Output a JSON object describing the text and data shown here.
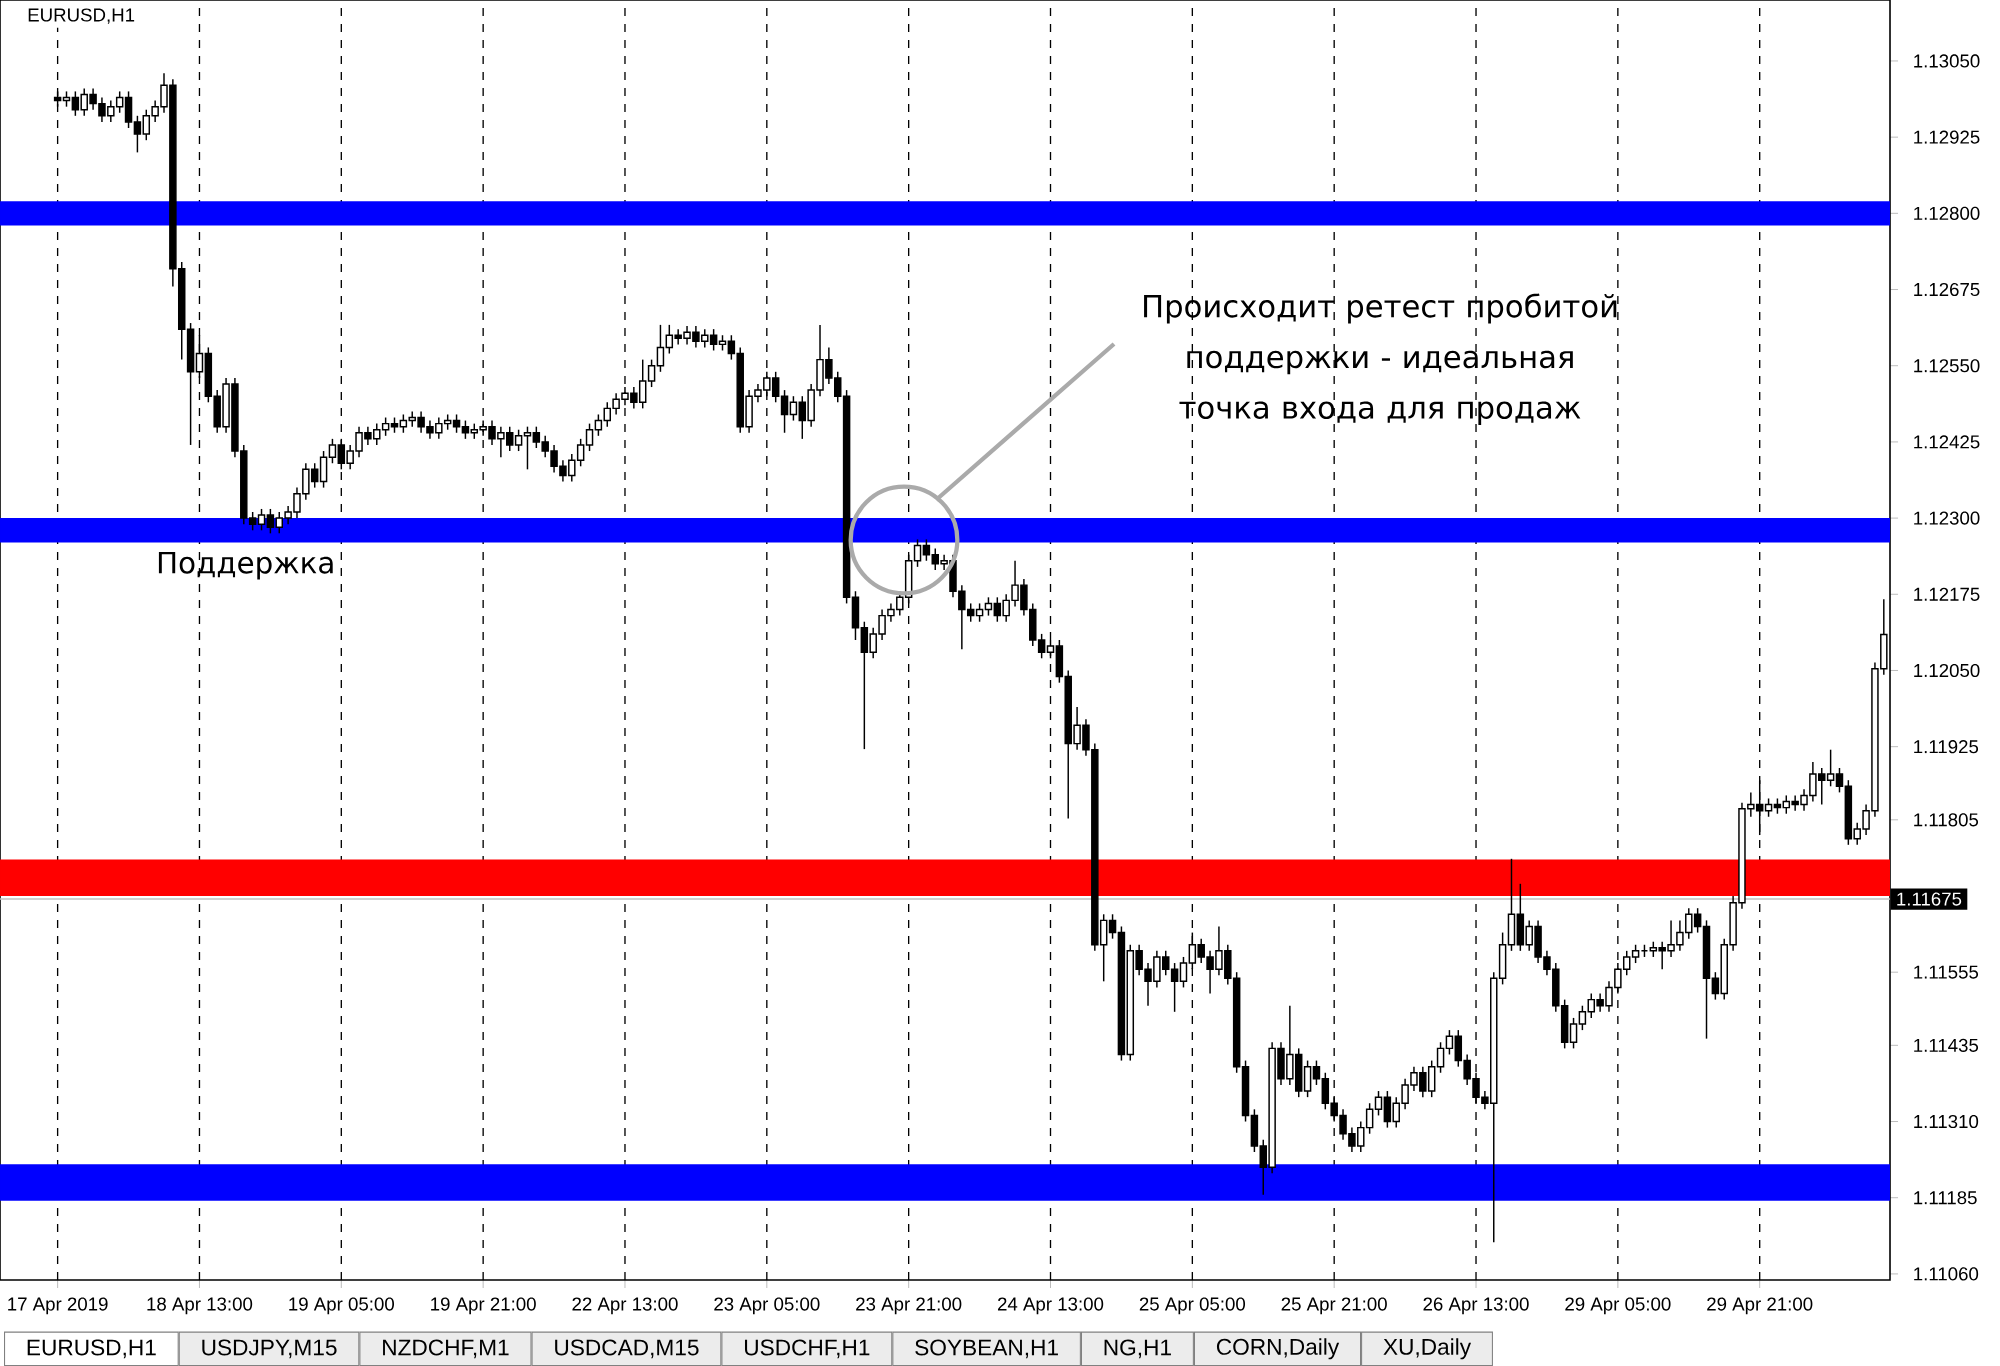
{
  "chart_data": {
    "type": "candlestick",
    "title": "EURUSD,H1",
    "categories": [
      "17 Apr 2019",
      null,
      null,
      null,
      null,
      null,
      null,
      null,
      null,
      null,
      null,
      null,
      null,
      null,
      null,
      null,
      "18 Apr 13:00",
      null,
      null,
      null,
      null,
      null,
      null,
      null,
      null,
      null,
      null,
      null,
      null,
      null,
      null,
      null,
      "19 Apr 05:00",
      null,
      null,
      null,
      null,
      null,
      null,
      null,
      null,
      null,
      null,
      null,
      null,
      null,
      null,
      null,
      "19 Apr 21:00",
      null,
      null,
      null,
      null,
      null,
      null,
      null,
      null,
      null,
      null,
      null,
      null,
      null,
      null,
      null,
      "22 Apr 13:00",
      null,
      null,
      null,
      null,
      null,
      null,
      null,
      null,
      null,
      null,
      null,
      null,
      null,
      null,
      null,
      "23 Apr 05:00",
      null,
      null,
      null,
      null,
      null,
      null,
      null,
      null,
      null,
      null,
      null,
      null,
      null,
      null,
      null,
      "23 Apr 21:00",
      null,
      null,
      null,
      null,
      null,
      null,
      null,
      null,
      null,
      null,
      null,
      null,
      null,
      null,
      null,
      "24 Apr 13:00",
      null,
      null,
      null,
      null,
      null,
      null,
      null,
      null,
      null,
      null,
      null,
      null,
      null,
      null,
      null,
      "25 Apr 05:00",
      null,
      null,
      null,
      null,
      null,
      null,
      null,
      null,
      null,
      null,
      null,
      null,
      null,
      null,
      null,
      "25 Apr 21:00",
      null,
      null,
      null,
      null,
      null,
      null,
      null,
      null,
      null,
      null,
      null,
      null,
      null,
      null,
      null,
      "26 Apr 13:00",
      null,
      null,
      null,
      null,
      null,
      null,
      null,
      null,
      null,
      null,
      null,
      null,
      null,
      null,
      null,
      "29 Apr 05:00",
      null,
      null,
      null,
      null,
      null,
      null,
      null,
      null,
      null,
      null,
      null,
      null,
      null,
      null,
      null,
      "29 Apr 21:00",
      null,
      null,
      null,
      null,
      null,
      null,
      null,
      null,
      null,
      null,
      null,
      null,
      null,
      null
    ],
    "ohlc": [
      [
        1.1299,
        1.13,
        1.12975,
        1.12985
      ],
      [
        1.12985,
        1.13,
        1.12975,
        1.1299
      ],
      [
        1.1299,
        1.13,
        1.1296,
        1.1297
      ],
      [
        1.1297,
        1.13005,
        1.1296,
        1.12995
      ],
      [
        1.12995,
        1.13005,
        1.1297,
        1.1298
      ],
      [
        1.1298,
        1.1299,
        1.1295,
        1.1296
      ],
      [
        1.1296,
        1.12985,
        1.1295,
        1.12975
      ],
      [
        1.12975,
        1.13,
        1.12965,
        1.1299
      ],
      [
        1.1299,
        1.13,
        1.1294,
        1.1295
      ],
      [
        1.1295,
        1.1296,
        1.129,
        1.1293
      ],
      [
        1.1293,
        1.1297,
        1.1292,
        1.1296
      ],
      [
        1.1296,
        1.12985,
        1.1295,
        1.12975
      ],
      [
        1.12975,
        1.1303,
        1.12965,
        1.1301
      ],
      [
        1.1301,
        1.1302,
        1.1268,
        1.12709
      ],
      [
        1.12709,
        1.1272,
        1.1256,
        1.1261
      ],
      [
        1.1261,
        1.1262,
        1.1242,
        1.1254
      ],
      [
        1.1254,
        1.126,
        1.1253,
        1.1257
      ],
      [
        1.1257,
        1.1258,
        1.1249,
        1.125
      ],
      [
        1.125,
        1.1251,
        1.1244,
        1.1245
      ],
      [
        1.1245,
        1.1253,
        1.1244,
        1.1252
      ],
      [
        1.1252,
        1.1253,
        1.124,
        1.1241
      ],
      [
        1.1241,
        1.1242,
        1.1229,
        1.123
      ],
      [
        1.123,
        1.1231,
        1.1228,
        1.1229
      ],
      [
        1.1229,
        1.12315,
        1.1228,
        1.12305
      ],
      [
        1.12305,
        1.12315,
        1.12275,
        1.12285
      ],
      [
        1.12285,
        1.1231,
        1.12275,
        1.123
      ],
      [
        1.123,
        1.1232,
        1.1229,
        1.1231
      ],
      [
        1.1231,
        1.1235,
        1.123,
        1.1234
      ],
      [
        1.1234,
        1.1239,
        1.1233,
        1.1238
      ],
      [
        1.1238,
        1.1239,
        1.1235,
        1.1236
      ],
      [
        1.1236,
        1.1241,
        1.1235,
        1.124
      ],
      [
        1.124,
        1.1243,
        1.1239,
        1.1242
      ],
      [
        1.1242,
        1.1243,
        1.1238,
        1.1239
      ],
      [
        1.1239,
        1.1242,
        1.1238,
        1.1241
      ],
      [
        1.1241,
        1.1245,
        1.124,
        1.1244
      ],
      [
        1.1244,
        1.1245,
        1.1242,
        1.1243
      ],
      [
        1.1243,
        1.12455,
        1.1242,
        1.12445
      ],
      [
        1.12445,
        1.12465,
        1.12435,
        1.12455
      ],
      [
        1.12455,
        1.12465,
        1.1244,
        1.1245
      ],
      [
        1.1245,
        1.1247,
        1.1244,
        1.1246
      ],
      [
        1.1246,
        1.12475,
        1.1245,
        1.12465
      ],
      [
        1.12465,
        1.12475,
        1.1244,
        1.1245
      ],
      [
        1.1245,
        1.1246,
        1.1243,
        1.1244
      ],
      [
        1.1244,
        1.12465,
        1.1243,
        1.12455
      ],
      [
        1.12455,
        1.1247,
        1.12445,
        1.1246
      ],
      [
        1.1246,
        1.1247,
        1.1244,
        1.1245
      ],
      [
        1.1245,
        1.1246,
        1.1243,
        1.1244
      ],
      [
        1.1244,
        1.12455,
        1.1243,
        1.12445
      ],
      [
        1.12445,
        1.1246,
        1.12435,
        1.1245
      ],
      [
        1.1245,
        1.1246,
        1.1242,
        1.1243
      ],
      [
        1.1243,
        1.1245,
        1.124,
        1.1244
      ],
      [
        1.1244,
        1.1245,
        1.1241,
        1.1242
      ],
      [
        1.1242,
        1.12445,
        1.1241,
        1.12435
      ],
      [
        1.12435,
        1.1245,
        1.1238,
        1.1244
      ],
      [
        1.1244,
        1.1245,
        1.12415,
        1.12425
      ],
      [
        1.12425,
        1.12435,
        1.124,
        1.1241
      ],
      [
        1.1241,
        1.1242,
        1.12375,
        1.12385
      ],
      [
        1.12385,
        1.12395,
        1.1236,
        1.1237
      ],
      [
        1.1237,
        1.12405,
        1.1236,
        1.12395
      ],
      [
        1.12395,
        1.1243,
        1.12385,
        1.1242
      ],
      [
        1.1242,
        1.12455,
        1.1241,
        1.12445
      ],
      [
        1.12445,
        1.1247,
        1.12435,
        1.1246
      ],
      [
        1.1246,
        1.1249,
        1.1245,
        1.1248
      ],
      [
        1.1248,
        1.12505,
        1.1247,
        1.12495
      ],
      [
        1.12495,
        1.12515,
        1.12485,
        1.12505
      ],
      [
        1.12505,
        1.12515,
        1.1248,
        1.1249
      ],
      [
        1.1249,
        1.1256,
        1.1248,
        1.12525
      ],
      [
        1.12525,
        1.1256,
        1.12515,
        1.1255
      ],
      [
        1.1255,
        1.12617,
        1.1254,
        1.1258
      ],
      [
        1.1258,
        1.12617,
        1.1257,
        1.126
      ],
      [
        1.126,
        1.1261,
        1.12585,
        1.12595
      ],
      [
        1.12595,
        1.12615,
        1.12585,
        1.12605
      ],
      [
        1.12605,
        1.12615,
        1.1258,
        1.1259
      ],
      [
        1.1259,
        1.1261,
        1.1258,
        1.126
      ],
      [
        1.126,
        1.1261,
        1.12575,
        1.12585
      ],
      [
        1.12585,
        1.126,
        1.12575,
        1.1259
      ],
      [
        1.1259,
        1.126,
        1.1256,
        1.1257
      ],
      [
        1.1257,
        1.1258,
        1.1244,
        1.1245
      ],
      [
        1.1245,
        1.1251,
        1.1244,
        1.125
      ],
      [
        1.125,
        1.1252,
        1.1249,
        1.1251
      ],
      [
        1.1251,
        1.1254,
        1.125,
        1.1253
      ],
      [
        1.1253,
        1.1254,
        1.1249,
        1.125
      ],
      [
        1.125,
        1.1251,
        1.1244,
        1.1247
      ],
      [
        1.1247,
        1.125,
        1.1246,
        1.1249
      ],
      [
        1.1249,
        1.125,
        1.1243,
        1.1246
      ],
      [
        1.1246,
        1.1252,
        1.1245,
        1.1251
      ],
      [
        1.1251,
        1.12617,
        1.125,
        1.1256
      ],
      [
        1.1256,
        1.1258,
        1.1252,
        1.1253
      ],
      [
        1.1253,
        1.1254,
        1.1249,
        1.125
      ],
      [
        1.125,
        1.1251,
        1.1216,
        1.1217
      ],
      [
        1.1217,
        1.1218,
        1.121,
        1.1212
      ],
      [
        1.1212,
        1.1213,
        1.11921,
        1.1208
      ],
      [
        1.1208,
        1.1212,
        1.1207,
        1.1211
      ],
      [
        1.1211,
        1.1215,
        1.121,
        1.1214
      ],
      [
        1.1214,
        1.1216,
        1.1213,
        1.1215
      ],
      [
        1.1215,
        1.1218,
        1.1214,
        1.1217
      ],
      [
        1.1217,
        1.1224,
        1.1216,
        1.1223
      ],
      [
        1.1223,
        1.12265,
        1.1222,
        1.12255
      ],
      [
        1.12255,
        1.12265,
        1.1223,
        1.1224
      ],
      [
        1.1224,
        1.1225,
        1.12215,
        1.12225
      ],
      [
        1.12225,
        1.1224,
        1.12215,
        1.1223
      ],
      [
        1.1223,
        1.1224,
        1.1217,
        1.1218
      ],
      [
        1.1218,
        1.1219,
        1.12085,
        1.1215
      ],
      [
        1.1215,
        1.1216,
        1.1213,
        1.1214
      ],
      [
        1.1214,
        1.1216,
        1.1213,
        1.1215
      ],
      [
        1.1215,
        1.1217,
        1.1214,
        1.1216
      ],
      [
        1.1216,
        1.1217,
        1.1213,
        1.1214
      ],
      [
        1.1214,
        1.12175,
        1.1213,
        1.12165
      ],
      [
        1.12165,
        1.1223,
        1.12155,
        1.1219
      ],
      [
        1.1219,
        1.122,
        1.1214,
        1.1215
      ],
      [
        1.1215,
        1.1216,
        1.1209,
        1.121
      ],
      [
        1.121,
        1.1211,
        1.1207,
        1.1208
      ],
      [
        1.1208,
        1.121,
        1.1207,
        1.1209
      ],
      [
        1.1209,
        1.121,
        1.1203,
        1.1204
      ],
      [
        1.1204,
        1.1205,
        1.11807,
        1.1193
      ],
      [
        1.1193,
        1.1199,
        1.1192,
        1.1196
      ],
      [
        1.1196,
        1.1197,
        1.1191,
        1.1192
      ],
      [
        1.1192,
        1.1193,
        1.1159,
        1.116
      ],
      [
        1.116,
        1.1165,
        1.1154,
        1.1164
      ],
      [
        1.1164,
        1.1165,
        1.1161,
        1.1162
      ],
      [
        1.1162,
        1.1163,
        1.1141,
        1.1142
      ],
      [
        1.1142,
        1.116,
        1.1141,
        1.1159
      ],
      [
        1.1159,
        1.116,
        1.1155,
        1.1156
      ],
      [
        1.1156,
        1.1157,
        1.115,
        1.1154
      ],
      [
        1.1154,
        1.1159,
        1.1153,
        1.1158
      ],
      [
        1.1158,
        1.1159,
        1.1155,
        1.1156
      ],
      [
        1.1156,
        1.1157,
        1.1149,
        1.1154
      ],
      [
        1.1154,
        1.1158,
        1.1153,
        1.1157
      ],
      [
        1.1157,
        1.1162,
        1.1156,
        1.116
      ],
      [
        1.116,
        1.1161,
        1.1157,
        1.1158
      ],
      [
        1.1158,
        1.1159,
        1.1152,
        1.1156
      ],
      [
        1.1156,
        1.1163,
        1.1155,
        1.1159
      ],
      [
        1.1159,
        1.116,
        1.11535,
        1.11545
      ],
      [
        1.11545,
        1.11555,
        1.1139,
        1.114
      ],
      [
        1.114,
        1.1141,
        1.1131,
        1.1132
      ],
      [
        1.1132,
        1.1133,
        1.1126,
        1.1127
      ],
      [
        1.1127,
        1.1128,
        1.1119,
        1.11235
      ],
      [
        1.11235,
        1.1144,
        1.11225,
        1.1143
      ],
      [
        1.1143,
        1.1144,
        1.1137,
        1.1138
      ],
      [
        1.1138,
        1.115,
        1.1137,
        1.1142
      ],
      [
        1.1142,
        1.1143,
        1.1135,
        1.1136
      ],
      [
        1.1136,
        1.1141,
        1.1135,
        1.114
      ],
      [
        1.114,
        1.1141,
        1.1137,
        1.1138
      ],
      [
        1.1138,
        1.1139,
        1.1133,
        1.1134
      ],
      [
        1.1134,
        1.1135,
        1.1131,
        1.1132
      ],
      [
        1.1132,
        1.1133,
        1.1128,
        1.1129
      ],
      [
        1.1129,
        1.113,
        1.1126,
        1.1127
      ],
      [
        1.1127,
        1.1131,
        1.1126,
        1.113
      ],
      [
        1.113,
        1.1134,
        1.1129,
        1.1133
      ],
      [
        1.1133,
        1.1136,
        1.1132,
        1.1135
      ],
      [
        1.1135,
        1.1136,
        1.113,
        1.1131
      ],
      [
        1.1131,
        1.1135,
        1.113,
        1.1134
      ],
      [
        1.1134,
        1.1138,
        1.1133,
        1.1137
      ],
      [
        1.1137,
        1.114,
        1.1136,
        1.1139
      ],
      [
        1.1139,
        1.114,
        1.1135,
        1.1136
      ],
      [
        1.1136,
        1.1141,
        1.1135,
        1.114
      ],
      [
        1.114,
        1.1144,
        1.1139,
        1.1143
      ],
      [
        1.1143,
        1.1146,
        1.1142,
        1.1145
      ],
      [
        1.1145,
        1.1146,
        1.114,
        1.1141
      ],
      [
        1.1141,
        1.1142,
        1.1137,
        1.1138
      ],
      [
        1.1138,
        1.1139,
        1.1134,
        1.1135
      ],
      [
        1.1135,
        1.1136,
        1.1133,
        1.1134
      ],
      [
        1.1134,
        1.11555,
        1.11112,
        1.11545
      ],
      [
        1.11545,
        1.1162,
        1.11535,
        1.116
      ],
      [
        1.116,
        1.11741,
        1.1159,
        1.1165
      ],
      [
        1.1165,
        1.117,
        1.1159,
        1.116
      ],
      [
        1.116,
        1.1164,
        1.1159,
        1.1163
      ],
      [
        1.1163,
        1.1164,
        1.1157,
        1.1158
      ],
      [
        1.1158,
        1.1159,
        1.1155,
        1.1156
      ],
      [
        1.1156,
        1.1157,
        1.1149,
        1.115
      ],
      [
        1.115,
        1.1151,
        1.1143,
        1.1144
      ],
      [
        1.1144,
        1.1148,
        1.1143,
        1.1147
      ],
      [
        1.1147,
        1.115,
        1.1146,
        1.1149
      ],
      [
        1.1149,
        1.1152,
        1.1148,
        1.1151
      ],
      [
        1.1151,
        1.1152,
        1.1149,
        1.115
      ],
      [
        1.115,
        1.1154,
        1.1149,
        1.1153
      ],
      [
        1.1153,
        1.1157,
        1.1152,
        1.1156
      ],
      [
        1.1156,
        1.1159,
        1.1155,
        1.1158
      ],
      [
        1.1158,
        1.116,
        1.1157,
        1.1159
      ],
      [
        1.1159,
        1.116,
        1.1158,
        1.1159
      ],
      [
        1.1159,
        1.11605,
        1.1158,
        1.11595
      ],
      [
        1.11595,
        1.11605,
        1.1156,
        1.1159
      ],
      [
        1.1159,
        1.1164,
        1.1158,
        1.116
      ],
      [
        1.116,
        1.1164,
        1.1159,
        1.1162
      ],
      [
        1.1162,
        1.1166,
        1.1161,
        1.1165
      ],
      [
        1.1165,
        1.1166,
        1.1162,
        1.1163
      ],
      [
        1.1163,
        1.1164,
        1.11446,
        1.11545
      ],
      [
        1.11545,
        1.11555,
        1.1151,
        1.1152
      ],
      [
        1.1152,
        1.1161,
        1.1151,
        1.116
      ],
      [
        1.116,
        1.1168,
        1.1159,
        1.11669
      ],
      [
        1.11669,
        1.11833,
        1.11659,
        1.11823
      ],
      [
        1.11823,
        1.1185,
        1.1181,
        1.1183
      ],
      [
        1.1183,
        1.1187,
        1.1178,
        1.1182
      ],
      [
        1.1182,
        1.1184,
        1.1181,
        1.1183
      ],
      [
        1.1183,
        1.1184,
        1.11815,
        1.11825
      ],
      [
        1.11825,
        1.11845,
        1.11815,
        1.11835
      ],
      [
        1.11835,
        1.11845,
        1.1182,
        1.1183
      ],
      [
        1.1183,
        1.11855,
        1.1182,
        1.11845
      ],
      [
        1.11845,
        1.119,
        1.11835,
        1.1188
      ],
      [
        1.1188,
        1.1189,
        1.1183,
        1.1187
      ],
      [
        1.1187,
        1.1192,
        1.1186,
        1.1188
      ],
      [
        1.1188,
        1.1189,
        1.1185,
        1.1186
      ],
      [
        1.1186,
        1.1187,
        1.11764,
        1.11774
      ],
      [
        1.11774,
        1.118,
        1.11764,
        1.1179
      ],
      [
        1.1179,
        1.1183,
        1.1178,
        1.1182
      ],
      [
        1.1182,
        1.12063,
        1.1181,
        1.12053
      ],
      [
        1.12053,
        1.12167,
        1.12043,
        1.12109
      ]
    ],
    "ylim": [
      1.1105,
      1.1315
    ],
    "yticks": [
      {
        "value": 1.1305,
        "label": "1.13050"
      },
      {
        "value": 1.12925,
        "label": "1.12925"
      },
      {
        "value": 1.128,
        "label": "1.12800"
      },
      {
        "value": 1.12675,
        "label": "1.12675"
      },
      {
        "value": 1.1255,
        "label": "1.12550"
      },
      {
        "value": 1.12425,
        "label": "1.12425"
      },
      {
        "value": 1.123,
        "label": "1.12300"
      },
      {
        "value": 1.12175,
        "label": "1.12175"
      },
      {
        "value": 1.1205,
        "label": "1.12050"
      },
      {
        "value": 1.11925,
        "label": "1.11925"
      },
      {
        "value": 1.11805,
        "label": "1.11805"
      },
      {
        "value": 1.11555,
        "label": "1.11555"
      },
      {
        "value": 1.11435,
        "label": "1.11435"
      },
      {
        "value": 1.1131,
        "label": "1.11310"
      },
      {
        "value": 1.11185,
        "label": "1.11185"
      },
      {
        "value": 1.1106,
        "label": "1.11060"
      }
    ],
    "grid": "x",
    "bands": [
      {
        "axis": "y",
        "from": 1.1278,
        "to": 1.1282,
        "color": "#0000ff"
      },
      {
        "axis": "y",
        "from": 1.1226,
        "to": 1.123,
        "color": "#0000ff",
        "label": "Поддержка"
      },
      {
        "axis": "y",
        "from": 1.1168,
        "to": 1.1174,
        "color": "#ff0000"
      },
      {
        "axis": "y",
        "from": 1.1118,
        "to": 1.1124,
        "color": "#0000ff"
      }
    ],
    "ref_lines": [
      {
        "axis": "y",
        "value": 1.11675,
        "label": "1.11675",
        "color": "#c0c0c0"
      }
    ],
    "annotations": [
      "Происходит ретест пробитой поддержки - идеальная точка входа для продаж",
      "EURUSD,H1",
      "USDJPY,M15",
      "NZDCHF,M1",
      "USDCAD,M15",
      "USDCHF,H1",
      "SOYBEAN,H1",
      "NG,H1",
      "CORN,Daily",
      "XU,Daily"
    ]
  }
}
